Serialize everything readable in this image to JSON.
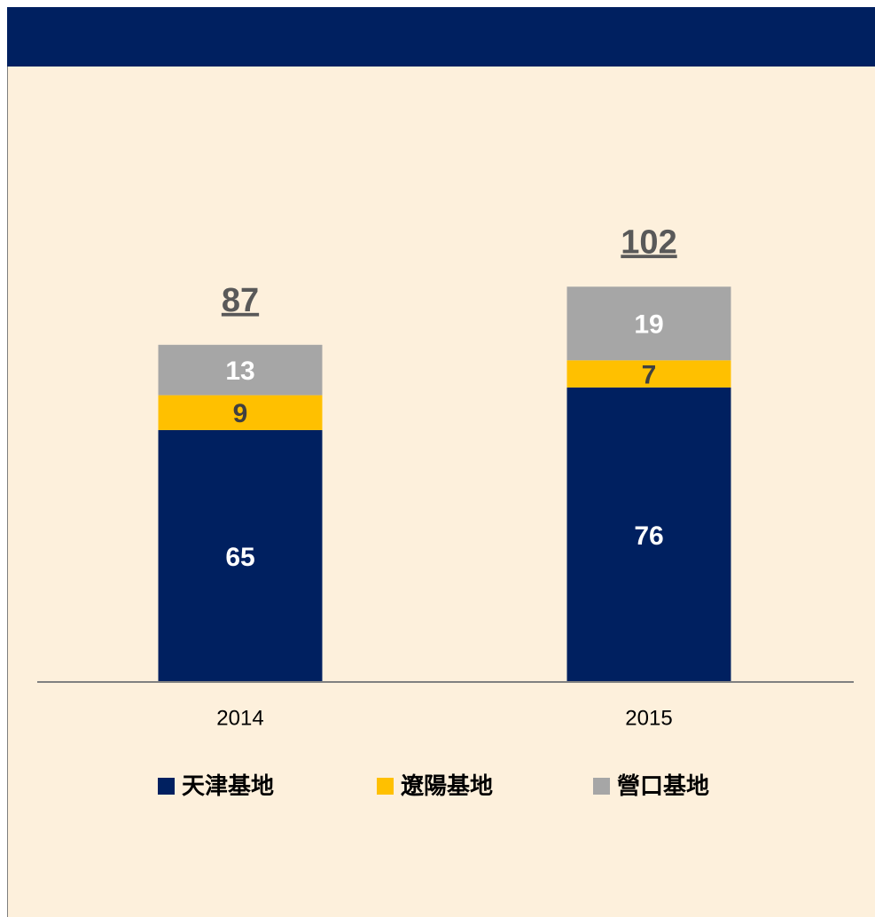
{
  "chart_data": {
    "type": "stacked-bar",
    "categories": [
      "2014",
      "2015"
    ],
    "series": [
      {
        "name": "天津基地",
        "color": "#002060",
        "values": [
          65,
          76
        ]
      },
      {
        "name": "遼陽基地",
        "color": "#ffc000",
        "values": [
          9,
          7
        ]
      },
      {
        "name": "營口基地",
        "color": "#a6a6a6",
        "values": [
          13,
          19
        ]
      }
    ],
    "totals": [
      87,
      102
    ]
  }
}
